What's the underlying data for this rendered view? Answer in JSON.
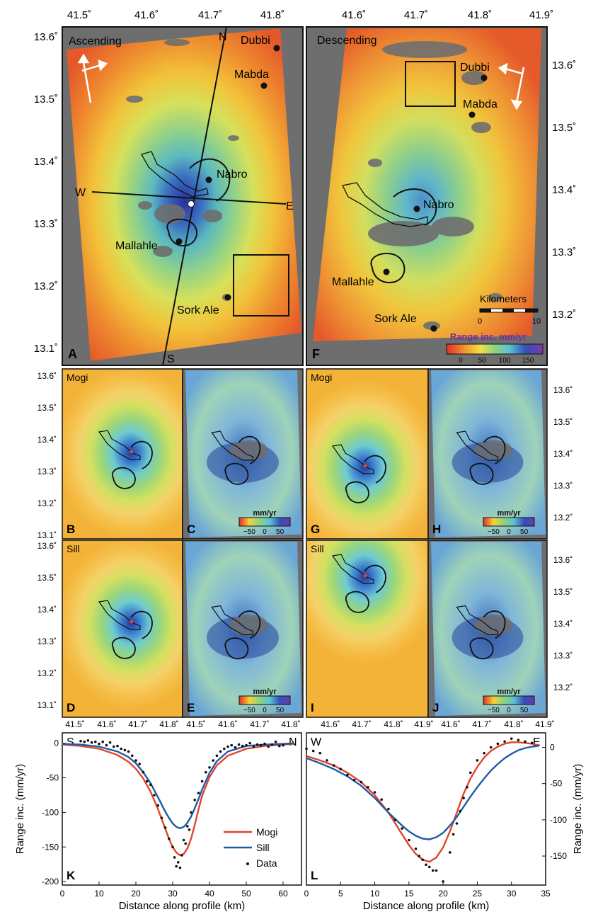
{
  "colors": {
    "nodata": "#6e6e6e",
    "mogi": "#e0452a",
    "sill": "#1f5aa6",
    "data": "#111111",
    "frame": "#111111"
  },
  "top_axes": {
    "ascending_lon": [
      "41.5˚",
      "41.6˚",
      "41.7˚",
      "41.8˚"
    ],
    "descending_lon": [
      "41.6˚",
      "41.7˚",
      "41.8˚",
      "41.9˚"
    ],
    "ascending_lat": [
      "13.6˚",
      "13.5˚",
      "13.4˚",
      "13.3˚",
      "13.2˚",
      "13.1˚"
    ],
    "descending_lat": [
      "13.6˚",
      "13.5˚",
      "13.4˚",
      "13.3˚",
      "13.2˚"
    ]
  },
  "panel_a": {
    "letter": "A",
    "title": "Ascending",
    "profile_labels": {
      "n": "N",
      "s": "S",
      "w": "W",
      "e": "E"
    },
    "places": {
      "dubbi": "Dubbi",
      "mabda": "Mabda",
      "nabro": "Nabro",
      "mallahle": "Mallahle",
      "sork_ale": "Sork Ale"
    }
  },
  "panel_f": {
    "letter": "F",
    "title": "Descending",
    "places": {
      "dubbi": "Dubbi",
      "mabda": "Mabda",
      "nabro": "Nabro",
      "mallahle": "Mallahle",
      "sork_ale": "Sork Ale"
    },
    "scalebar_label": "Kilometers",
    "scalebar_ticks": [
      "0",
      "10"
    ],
    "colorbar_title": "Range inc. mm/yr",
    "colorbar_ticks": [
      "0",
      "50",
      "100",
      "150"
    ]
  },
  "models": {
    "mogi": "Mogi",
    "sill": "Sill",
    "residual_unit": "mm/yr",
    "residual_ticks": [
      "−50",
      "0",
      "50"
    ],
    "letters": {
      "b": "B",
      "c": "C",
      "d": "D",
      "e": "E",
      "g": "G",
      "h": "H",
      "i": "I",
      "j": "J"
    },
    "left_lat": [
      "13.6˚",
      "13.5˚",
      "13.4˚",
      "13.3˚",
      "13.2˚",
      "13.1˚"
    ],
    "right_lat": [
      "13.6˚",
      "13.5˚",
      "13.4˚",
      "13.3˚",
      "13.2˚"
    ],
    "bottom_lon_left": [
      "41.5˚",
      "41.6˚",
      "41.7˚",
      "41.8˚",
      "41.5˚",
      "41.6˚",
      "41.7˚",
      "41.8˚"
    ],
    "bottom_lon_right": [
      "41.6˚",
      "41.7˚",
      "41.8˚",
      "41.9˚",
      "41.6˚",
      "41.7˚",
      "41.8˚",
      "41.9˚"
    ]
  },
  "chart_data": [
    {
      "type": "scatter",
      "panel": "K",
      "endpoints": {
        "left": "S",
        "right": "N"
      },
      "xlabel": "Distance along profile (km)",
      "ylabel": "Range inc. (mm/yr)",
      "xlim": [
        0,
        65
      ],
      "ylim": [
        -205,
        15
      ],
      "xticks": [
        0,
        10,
        20,
        30,
        40,
        50,
        60
      ],
      "yticks": [
        0,
        -50,
        -100,
        -150,
        -200
      ],
      "legend": {
        "position": "bottom-right",
        "entries": [
          "Mogi",
          "Sill",
          "Data"
        ]
      },
      "series": [
        {
          "name": "Mogi",
          "line": true,
          "x": [
            0,
            5,
            10,
            15,
            18,
            20,
            22,
            24,
            26,
            28,
            29,
            30,
            31,
            32,
            33,
            34,
            35,
            36,
            37,
            38,
            40,
            42,
            45,
            50,
            55,
            60,
            63
          ],
          "y": [
            -2,
            -4,
            -8,
            -17,
            -27,
            -37,
            -51,
            -70,
            -95,
            -124,
            -138,
            -150,
            -158,
            -162,
            -160,
            -152,
            -138,
            -118,
            -96,
            -76,
            -49,
            -32,
            -18,
            -8,
            -4,
            -2,
            -1
          ]
        },
        {
          "name": "Sill",
          "line": true,
          "x": [
            0,
            5,
            10,
            15,
            18,
            20,
            22,
            24,
            26,
            28,
            29,
            30,
            31,
            32,
            33,
            34,
            35,
            36,
            37,
            38,
            40,
            42,
            45,
            50,
            55,
            60,
            63
          ],
          "y": [
            -1,
            -2,
            -5,
            -12,
            -20,
            -29,
            -42,
            -58,
            -78,
            -99,
            -108,
            -116,
            -121,
            -123,
            -121,
            -115,
            -106,
            -94,
            -81,
            -67,
            -43,
            -26,
            -12,
            -4,
            -2,
            -1,
            0
          ]
        },
        {
          "name": "Data",
          "line": false,
          "x": [
            5,
            6,
            7,
            8,
            9,
            10,
            11,
            12,
            13,
            14,
            15,
            16,
            17,
            18,
            19,
            20,
            21,
            22,
            23,
            24,
            25,
            26,
            27,
            28,
            29,
            30,
            30.5,
            31,
            31.5,
            32,
            32.5,
            33,
            33.5,
            34,
            34.5,
            35,
            36,
            37,
            38,
            39,
            40,
            41,
            42,
            43,
            44,
            45,
            46,
            47,
            48,
            49,
            50,
            51,
            52,
            53,
            54,
            55,
            56,
            57,
            58,
            59,
            60
          ],
          "y": [
            3,
            2,
            4,
            1,
            2,
            -1,
            2,
            -3,
            1,
            -5,
            -4,
            -8,
            -10,
            -12,
            -18,
            -25,
            -30,
            -42,
            -55,
            -60,
            -75,
            -90,
            -108,
            -122,
            -138,
            -150,
            -165,
            -178,
            -172,
            -180,
            -162,
            -140,
            -145,
            -120,
            -125,
            -100,
            -82,
            -72,
            -55,
            -42,
            -35,
            -25,
            -18,
            -12,
            -8,
            -5,
            -3,
            -6,
            -2,
            -4,
            -3,
            0,
            -5,
            -2,
            -3,
            -1,
            -5,
            -2,
            2,
            -4,
            -3
          ]
        }
      ]
    },
    {
      "type": "scatter",
      "panel": "L",
      "endpoints": {
        "left": "W",
        "right": "E"
      },
      "xlabel": "Distance along profile (km)",
      "ylabel": "Range inc. (mm/yr)",
      "xlim": [
        0,
        35
      ],
      "ylim": [
        -190,
        20
      ],
      "xticks": [
        0,
        5,
        10,
        15,
        20,
        25,
        30,
        35
      ],
      "yticks": [
        0,
        -50,
        -100,
        -150
      ],
      "series": [
        {
          "name": "Mogi",
          "line": true,
          "x": [
            0,
            2,
            4,
            6,
            8,
            10,
            12,
            14,
            15,
            16,
            17,
            18,
            19,
            20,
            21,
            22,
            23,
            24,
            25,
            26,
            27,
            28,
            29,
            30,
            31,
            32,
            33,
            34
          ],
          "y": [
            -12,
            -18,
            -25,
            -35,
            -48,
            -66,
            -90,
            -120,
            -135,
            -147,
            -155,
            -158,
            -152,
            -138,
            -116,
            -90,
            -64,
            -43,
            -27,
            -14,
            -5,
            1,
            5,
            7,
            7,
            6,
            5,
            3
          ]
        },
        {
          "name": "Sill",
          "line": true,
          "x": [
            0,
            2,
            4,
            6,
            8,
            10,
            12,
            14,
            15,
            16,
            17,
            18,
            19,
            20,
            21,
            22,
            23,
            24,
            25,
            26,
            27,
            28,
            29,
            30,
            31,
            32,
            33,
            34
          ],
          "y": [
            -15,
            -22,
            -30,
            -40,
            -53,
            -70,
            -90,
            -108,
            -116,
            -122,
            -126,
            -127,
            -124,
            -118,
            -108,
            -96,
            -82,
            -68,
            -55,
            -43,
            -32,
            -23,
            -15,
            -9,
            -4,
            -1,
            1,
            2
          ]
        },
        {
          "name": "Data",
          "line": false,
          "x": [
            0,
            1,
            2,
            3,
            4,
            5,
            6,
            7,
            8,
            9,
            10,
            11,
            12,
            13,
            14,
            15,
            16,
            16.5,
            17,
            17.5,
            18,
            18.5,
            19,
            20,
            21,
            21.5,
            22,
            22.5,
            23,
            23.5,
            24,
            25,
            26,
            27,
            28,
            29,
            30,
            31,
            32,
            33
          ],
          "y": [
            -2,
            -5,
            -8,
            -18,
            -25,
            -30,
            -38,
            -45,
            -48,
            -55,
            -62,
            -72,
            -85,
            -100,
            -112,
            -128,
            -140,
            -150,
            -155,
            -162,
            -165,
            -170,
            -170,
            -185,
            -145,
            -120,
            -105,
            -88,
            -70,
            -55,
            -35,
            -18,
            -8,
            0,
            5,
            8,
            12,
            10,
            8,
            6
          ]
        }
      ]
    }
  ]
}
